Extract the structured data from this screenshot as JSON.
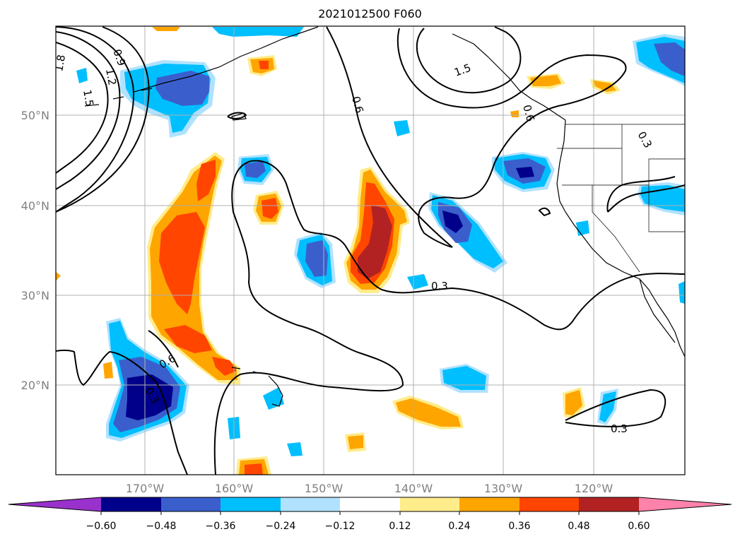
{
  "title": "2021012500 F060",
  "map": {
    "lon_ticks": [
      {
        "value": -170,
        "label": "170°W"
      },
      {
        "value": -160,
        "label": "160°W"
      },
      {
        "value": -150,
        "label": "150°W"
      },
      {
        "value": -140,
        "label": "140°W"
      },
      {
        "value": -130,
        "label": "130°W"
      },
      {
        "value": -120,
        "label": "120°W"
      }
    ],
    "lat_ticks": [
      {
        "value": 50,
        "label": "50°N"
      },
      {
        "value": 40,
        "label": "40°N"
      },
      {
        "value": 30,
        "label": "30°N"
      },
      {
        "value": 20,
        "label": "20°N"
      }
    ],
    "grid": true,
    "contour_labels": [
      "0.3",
      "0.6",
      "0.9",
      "1.2",
      "1.5",
      "1.8",
      "1.5",
      "0.6",
      "0.3",
      "0.3",
      "0.6",
      "0.3"
    ]
  },
  "colorbar": {
    "ticks": [
      "−0.60",
      "−0.48",
      "−0.36",
      "−0.24",
      "−0.12",
      "0.12",
      "0.24",
      "0.36",
      "0.48",
      "0.60"
    ],
    "colors": [
      "#9932cc",
      "#00008b",
      "#3a5fcd",
      "#00bfff",
      "#b0e2ff",
      "#ffffff",
      "#ffec8b",
      "#ffa500",
      "#ff4500",
      "#b22222",
      "#ff82ab"
    ],
    "extend": "both"
  },
  "field_colors": {
    "dark_blue": "#00008b",
    "blue": "#3a5fcd",
    "cyan": "#00bfff",
    "light_blue": "#b0e2ff",
    "light_yellow": "#ffec8b",
    "orange": "#ffa500",
    "red_orange": "#ff4500",
    "firebrick": "#b22222"
  }
}
